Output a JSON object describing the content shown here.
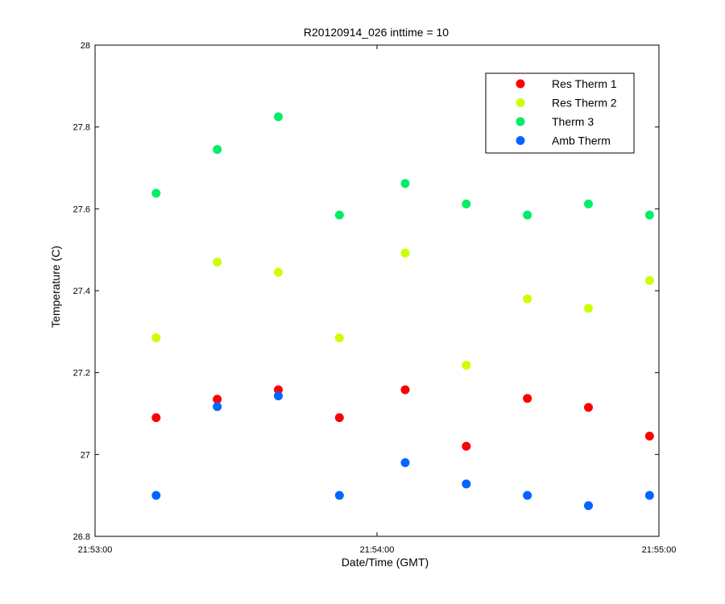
{
  "chart_data": {
    "type": "scatter",
    "title": "R20120914_026 inttime = 10",
    "xlabel": "Date/Time (GMT)",
    "ylabel": "Temperature (C)",
    "xlim": [
      "21:53:00",
      "21:55:00"
    ],
    "ylim": [
      26.8,
      28.0
    ],
    "x_ticks": [
      "21:53:00",
      "21:54:00",
      "21:55:00"
    ],
    "y_ticks": [
      "26.8",
      "27",
      "27.2",
      "27.4",
      "27.6",
      "27.8",
      "28"
    ],
    "grid": false,
    "legend_position": "top-right",
    "x": [
      "21:53:13",
      "21:53:26",
      "21:53:39",
      "21:53:52",
      "21:54:06",
      "21:54:19",
      "21:54:32",
      "21:54:45",
      "21:54:58"
    ],
    "series": [
      {
        "name": "Res Therm 1",
        "color": "#ff0000",
        "values": [
          27.09,
          27.135,
          27.158,
          27.09,
          27.158,
          27.02,
          27.137,
          27.115,
          27.045
        ]
      },
      {
        "name": "Res Therm 2",
        "color": "#ccff00",
        "values": [
          27.285,
          27.47,
          27.445,
          27.285,
          27.492,
          27.218,
          27.38,
          27.357,
          27.425
        ]
      },
      {
        "name": "Therm 3",
        "color": "#00ee66",
        "values": [
          27.638,
          27.745,
          27.825,
          27.585,
          27.662,
          27.612,
          27.585,
          27.612,
          27.585
        ]
      },
      {
        "name": "Amb Therm",
        "color": "#0066ff",
        "values": [
          26.9,
          27.117,
          27.143,
          26.9,
          26.98,
          26.928,
          26.9,
          26.875,
          26.9
        ]
      }
    ]
  }
}
